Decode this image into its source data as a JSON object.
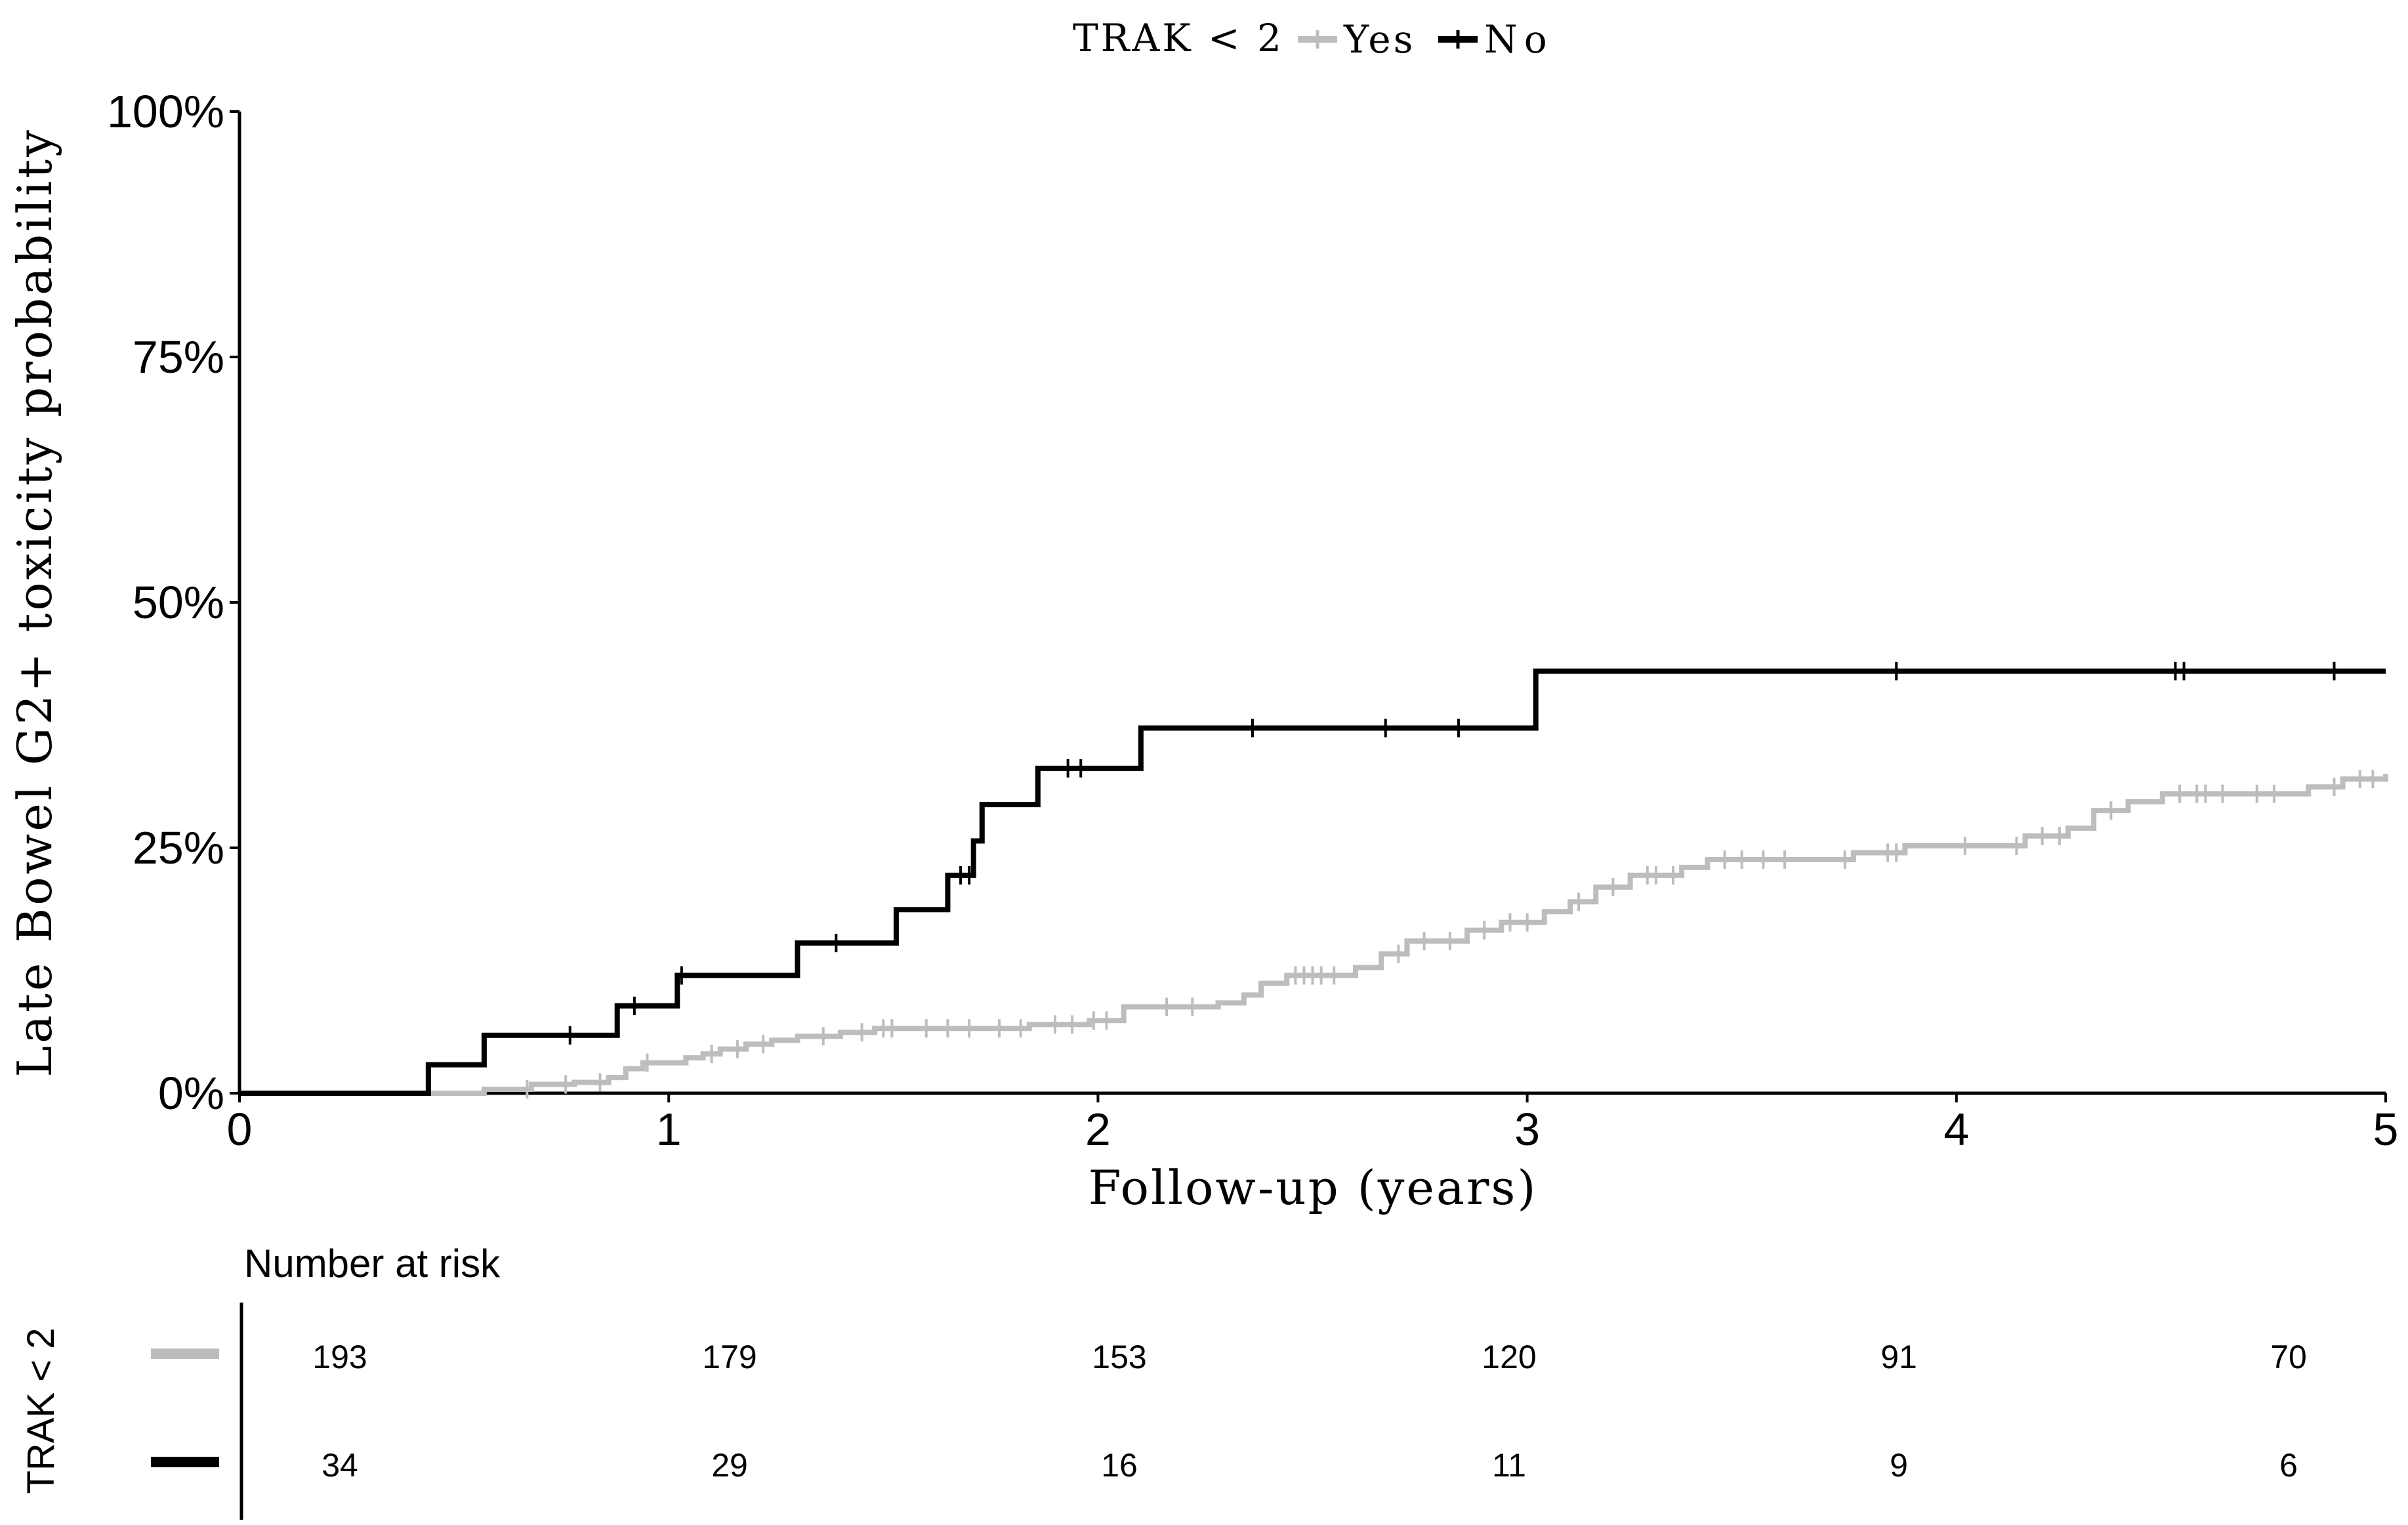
{
  "chart_data": {
    "type": "line",
    "subtype": "kaplan-meier-cumulative-incidence",
    "title": "",
    "legend": {
      "title": "TRAK < 2",
      "placement": "top-center",
      "entries": [
        "Yes",
        "No"
      ]
    },
    "xlabel": "Follow-up (years)",
    "ylabel": "Late Bowel G2+ toxicity probability",
    "xlim": [
      0,
      5
    ],
    "ylim": [
      0,
      1
    ],
    "xticks": [
      0,
      1,
      2,
      3,
      4,
      5
    ],
    "xtick_labels": [
      "0",
      "1",
      "2",
      "3",
      "4",
      "5"
    ],
    "yticks": [
      0,
      0.25,
      0.5,
      0.75,
      1
    ],
    "ytick_labels": [
      "0%",
      "25%",
      "50%",
      "75%",
      "100%"
    ],
    "grid": false,
    "series": [
      {
        "name": "Yes",
        "color": "#bdbdbd",
        "steps": [
          [
            0,
            0
          ],
          [
            0.57,
            0.004
          ],
          [
            0.68,
            0.009
          ],
          [
            0.78,
            0.011
          ],
          [
            0.86,
            0.016
          ],
          [
            0.9,
            0.025
          ],
          [
            0.94,
            0.031
          ],
          [
            1.04,
            0.036
          ],
          [
            1.08,
            0.04
          ],
          [
            1.12,
            0.045
          ],
          [
            1.18,
            0.05
          ],
          [
            1.24,
            0.054
          ],
          [
            1.3,
            0.058
          ],
          [
            1.4,
            0.062
          ],
          [
            1.48,
            0.066
          ],
          [
            1.84,
            0.07
          ],
          [
            1.98,
            0.074
          ],
          [
            2.06,
            0.088
          ],
          [
            2.28,
            0.092
          ],
          [
            2.34,
            0.1
          ],
          [
            2.38,
            0.112
          ],
          [
            2.44,
            0.12
          ],
          [
            2.6,
            0.128
          ],
          [
            2.66,
            0.142
          ],
          [
            2.72,
            0.155
          ],
          [
            2.86,
            0.166
          ],
          [
            2.94,
            0.174
          ],
          [
            3.04,
            0.185
          ],
          [
            3.1,
            0.195
          ],
          [
            3.16,
            0.21
          ],
          [
            3.24,
            0.222
          ],
          [
            3.36,
            0.23
          ],
          [
            3.42,
            0.238
          ],
          [
            3.76,
            0.245
          ],
          [
            3.88,
            0.252
          ],
          [
            4.16,
            0.262
          ],
          [
            4.26,
            0.27
          ],
          [
            4.32,
            0.288
          ],
          [
            4.4,
            0.297
          ],
          [
            4.48,
            0.305
          ],
          [
            4.82,
            0.312
          ],
          [
            4.9,
            0.32
          ],
          [
            5,
            0.325
          ]
        ],
        "censor_times": [
          0.67,
          0.76,
          0.84,
          0.95,
          1.1,
          1.16,
          1.22,
          1.36,
          1.45,
          1.5,
          1.52,
          1.6,
          1.65,
          1.7,
          1.77,
          1.82,
          1.9,
          1.94,
          1.99,
          2.02,
          2.16,
          2.22,
          2.46,
          2.48,
          2.5,
          2.52,
          2.55,
          2.7,
          2.76,
          2.82,
          2.9,
          2.96,
          3.0,
          3.12,
          3.2,
          3.28,
          3.3,
          3.34,
          3.46,
          3.5,
          3.55,
          3.6,
          3.74,
          3.84,
          3.86,
          4.02,
          4.14,
          4.2,
          4.24,
          4.36,
          4.52,
          4.56,
          4.58,
          4.62,
          4.7,
          4.74,
          4.88,
          4.94,
          4.97
        ]
      },
      {
        "name": "No",
        "color": "#000000",
        "steps": [
          [
            0,
            0
          ],
          [
            0.44,
            0.029
          ],
          [
            0.57,
            0.059
          ],
          [
            0.88,
            0.089
          ],
          [
            1.02,
            0.12
          ],
          [
            1.3,
            0.153
          ],
          [
            1.53,
            0.187
          ],
          [
            1.65,
            0.222
          ],
          [
            1.71,
            0.257
          ],
          [
            1.73,
            0.294
          ],
          [
            1.86,
            0.331
          ],
          [
            2.1,
            0.372
          ],
          [
            3.02,
            0.43
          ],
          [
            5,
            0.43
          ]
        ],
        "censor_times": [
          0.77,
          0.92,
          1.03,
          1.39,
          1.68,
          1.7,
          1.93,
          1.96,
          2.36,
          2.67,
          2.84,
          3.86,
          4.51,
          4.53,
          4.88
        ]
      }
    ],
    "risk_table": {
      "title": "Number at risk",
      "group_label": "TRAK < 2",
      "times": [
        0,
        1,
        2,
        3,
        4,
        5
      ],
      "rows": [
        {
          "name": "Yes",
          "color": "#bdbdbd",
          "counts": [
            "193",
            "179",
            "153",
            "120",
            "91",
            "70"
          ]
        },
        {
          "name": "No",
          "color": "#000000",
          "counts": [
            "34",
            "29",
            "16",
            "11",
            "9",
            "6"
          ]
        }
      ]
    }
  }
}
